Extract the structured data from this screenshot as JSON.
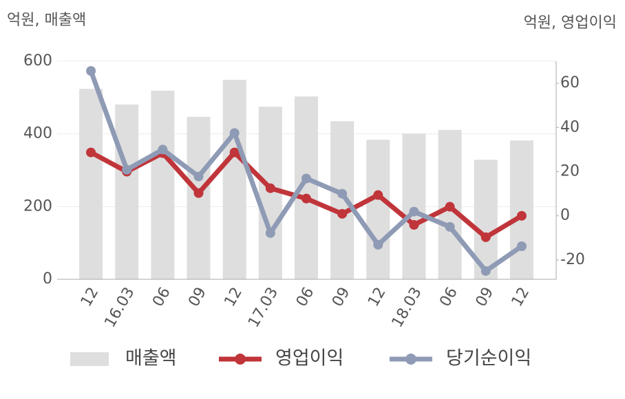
{
  "chart_data": {
    "type": "bar-line",
    "y_label": "억원, 매출액",
    "y2_label": "억원, 영업이익",
    "categories": [
      "12",
      "16.03",
      "06",
      "09",
      "12",
      "17.03",
      "06",
      "09",
      "12",
      "18.03",
      "06",
      "09",
      "12"
    ],
    "series": [
      {
        "name": "매출액",
        "type": "bar",
        "color": "#dedede",
        "values": [
          524,
          481,
          519,
          447,
          549,
          475,
          503,
          435,
          384,
          401,
          411,
          329,
          382
        ]
      },
      {
        "name": "영업이익",
        "type": "line",
        "axis": "y2",
        "color": "#c0353a",
        "values": [
          28.7,
          20,
          28.4,
          10.3,
          28.7,
          12.5,
          7.8,
          0.9,
          9.4,
          -4.1,
          4.1,
          -9.7,
          0
        ]
      },
      {
        "name": "당기순이익",
        "type": "line",
        "axis": "y2",
        "color": "#8f9bb5",
        "values": [
          65.6,
          20.9,
          30,
          17.8,
          37.5,
          -7.8,
          16.9,
          10,
          -13.1,
          1.9,
          -5,
          -25,
          -13.8
        ]
      }
    ],
    "ylim": [
      0,
      600
    ],
    "yticks": [
      0,
      200,
      400,
      600
    ],
    "y2lim": [
      -28.75,
      70
    ],
    "y2ticks": [
      -20,
      0,
      20,
      40,
      60
    ],
    "grid": true
  }
}
